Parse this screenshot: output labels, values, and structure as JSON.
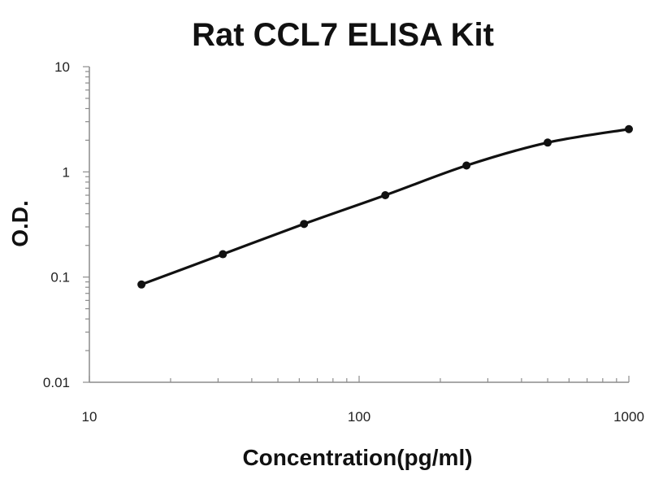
{
  "chart_data": {
    "type": "scatter",
    "title": "Rat CCL7 ELISA Kit",
    "xlabel": "Concentration(pg/ml)",
    "ylabel": "O.D.",
    "x_scale": "log",
    "y_scale": "log",
    "xlim": [
      10,
      1000
    ],
    "ylim": [
      0.01,
      10
    ],
    "x_ticks": [
      10,
      100,
      1000
    ],
    "x_tick_labels": [
      "10",
      "100",
      "1000"
    ],
    "y_ticks": [
      0.01,
      0.1,
      1,
      10
    ],
    "y_tick_labels": [
      "0.01",
      "0.1",
      "1",
      "10"
    ],
    "grid": false,
    "series": [
      {
        "x": [
          15.6,
          31.25,
          62.5,
          125,
          250,
          500,
          1000
        ],
        "y": [
          0.085,
          0.165,
          0.32,
          0.6,
          1.15,
          1.9,
          2.55
        ]
      }
    ],
    "colors": {
      "curve": "#111111",
      "axis": "#8c8c8c"
    }
  }
}
